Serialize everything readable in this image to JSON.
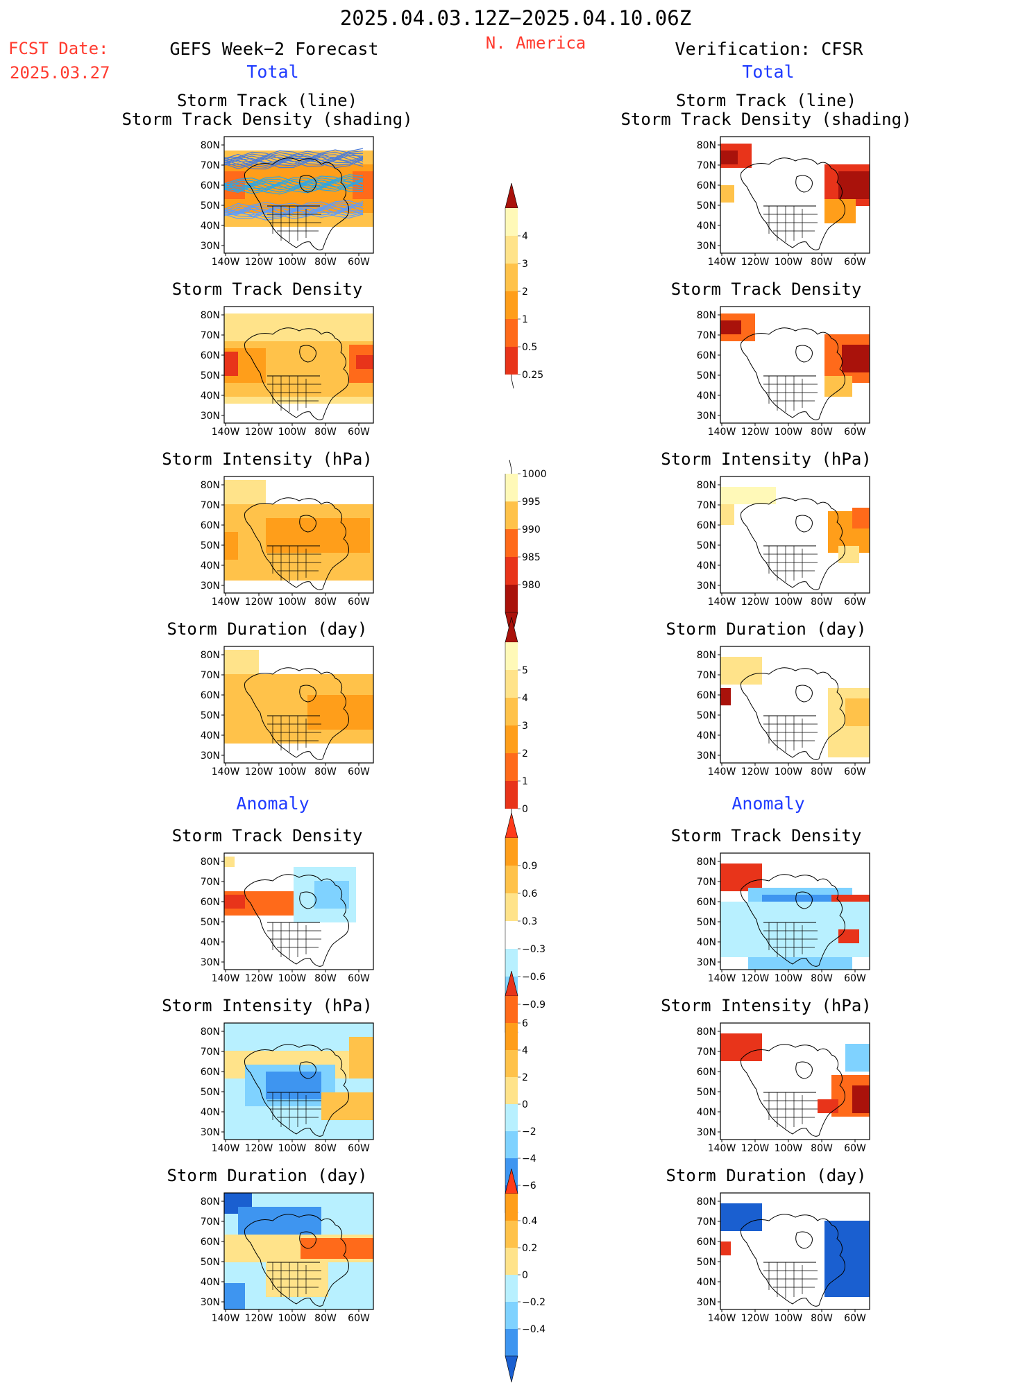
{
  "header": {
    "date_range": "2025.04.03.12Z−2025.04.10.06Z",
    "region": "N. America",
    "fcst_label": "FCST Date:",
    "fcst_date": "2025.03.27",
    "left_title": "GEFS Week−2 Forecast",
    "right_title": "Verification: CFSR"
  },
  "sections": {
    "total": "Total",
    "anomaly": "Anomaly"
  },
  "panel_titles": {
    "track_line": "Storm Track (line)",
    "track_density_shading": "Storm Track Density (shading)",
    "track_density": "Storm Track Density",
    "intensity": "Storm Intensity (hPa)",
    "duration": "Storm Duration (day)"
  },
  "axes": {
    "lat_labels": [
      "80N",
      "70N",
      "60N",
      "50N",
      "40N",
      "30N"
    ],
    "lon_labels": [
      "140W",
      "120W",
      "100W",
      "80W",
      "60W"
    ]
  },
  "colorbars": {
    "density": [
      "0.25",
      "0.5",
      "1",
      "2",
      "3",
      "4"
    ],
    "intensity": [
      "1000",
      "995",
      "990",
      "985",
      "980"
    ],
    "duration": [
      "0",
      "1",
      "2",
      "3",
      "4",
      "5"
    ],
    "density_anom": [
      "0.9",
      "0.6",
      "0.3",
      "−0.3",
      "−0.6",
      "−0.9"
    ],
    "intensity_anom": [
      "6",
      "4",
      "2",
      "0",
      "−2",
      "−4",
      "−6"
    ],
    "duration_anom": [
      "0.4",
      "0.2",
      "0",
      "−0.2",
      "−0.4"
    ]
  },
  "colors": {
    "title_red": "#ff3b2f",
    "title_blue": "#1f3bff",
    "warm": [
      "#fff9b8",
      "#ffe38a",
      "#ffc24a",
      "#ff9e1a",
      "#ff6a1a",
      "#e8341a",
      "#a9120b"
    ],
    "cool": [
      "#b8f0ff",
      "#7fd2ff",
      "#3e95f0",
      "#1a5fd0"
    ]
  }
}
